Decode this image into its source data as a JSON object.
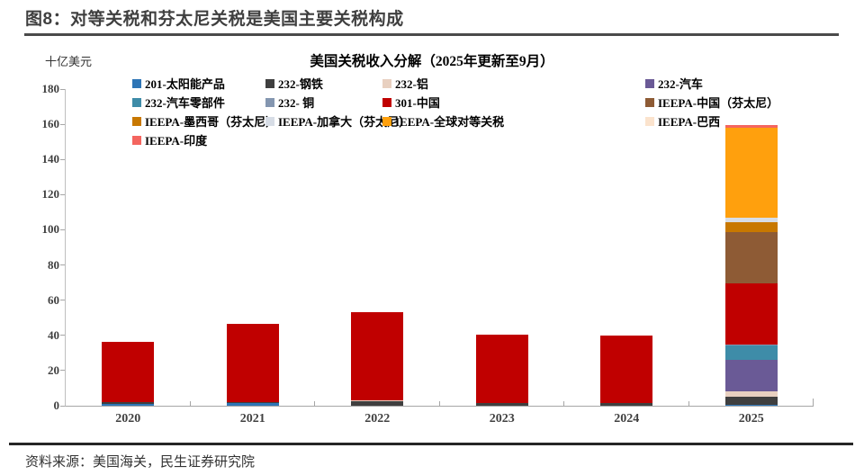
{
  "header": {
    "title": "图8：对等关税和芬太尼关税是美国主要关税构成"
  },
  "footer": {
    "source": "资料来源：美国海关，民生证券研究院"
  },
  "chart_data": {
    "type": "bar",
    "stacked": true,
    "title": "美国关税收入分解（2025年更新至9月）",
    "unit_label": "十亿美元",
    "categories": [
      "2020",
      "2021",
      "2022",
      "2023",
      "2024",
      "2025"
    ],
    "ylim": [
      0,
      180
    ],
    "ytick_step": 20,
    "grid": false,
    "legend_position": "top",
    "axis_color": "#a6a6a6",
    "series": [
      {
        "name": "201-太阳能产品",
        "color": "#2e75b6",
        "values": [
          1.2,
          1.3,
          0,
          0,
          0,
          0.3
        ]
      },
      {
        "name": "232-钢铁",
        "color": "#3f3f3f",
        "values": [
          0.8,
          0.9,
          2.6,
          1.6,
          1.4,
          5.0
        ]
      },
      {
        "name": "232-铝",
        "color": "#e8d0c0",
        "values": [
          0,
          0,
          0.6,
          0,
          0,
          2.7
        ]
      },
      {
        "name": "232-汽车",
        "color": "#6a5a96",
        "values": [
          0,
          0,
          0,
          0,
          0,
          18.0
        ]
      },
      {
        "name": "232-汽车零部件",
        "color": "#3e8ca8",
        "values": [
          0,
          0,
          0,
          0,
          0,
          8.2
        ]
      },
      {
        "name": "232- 铜",
        "color": "#8496b0",
        "values": [
          0,
          0,
          0,
          0,
          0,
          0.4
        ]
      },
      {
        "name": "301-中国",
        "color": "#c00000",
        "values": [
          34.5,
          44.3,
          49.8,
          38.9,
          38.4,
          34.9
        ]
      },
      {
        "name": "IEEPA-中国（芬太尼）",
        "color": "#8e5b35",
        "values": [
          0,
          0,
          0,
          0,
          0,
          29.3
        ]
      },
      {
        "name": "IEEPA-墨西哥（芬太尼）",
        "color": "#c87800",
        "values": [
          0,
          0,
          0,
          0,
          0,
          5.6
        ]
      },
      {
        "name": "IEEPA-加拿大（芬太尼）",
        "color": "#d7dde6",
        "values": [
          0,
          0,
          0,
          0,
          0,
          2.4
        ]
      },
      {
        "name": "IEEPA-全球对等关税",
        "color": "#ffa00d",
        "values": [
          0,
          0,
          0,
          0,
          0,
          51.1
        ]
      },
      {
        "name": "IEEPA-巴西",
        "color": "#fbe3cd",
        "values": [
          0,
          0,
          0,
          0,
          0,
          0.4
        ]
      },
      {
        "name": "IEEPA-印度",
        "color": "#f4655f",
        "values": [
          0,
          0,
          0,
          0,
          0,
          1.3
        ]
      }
    ]
  }
}
